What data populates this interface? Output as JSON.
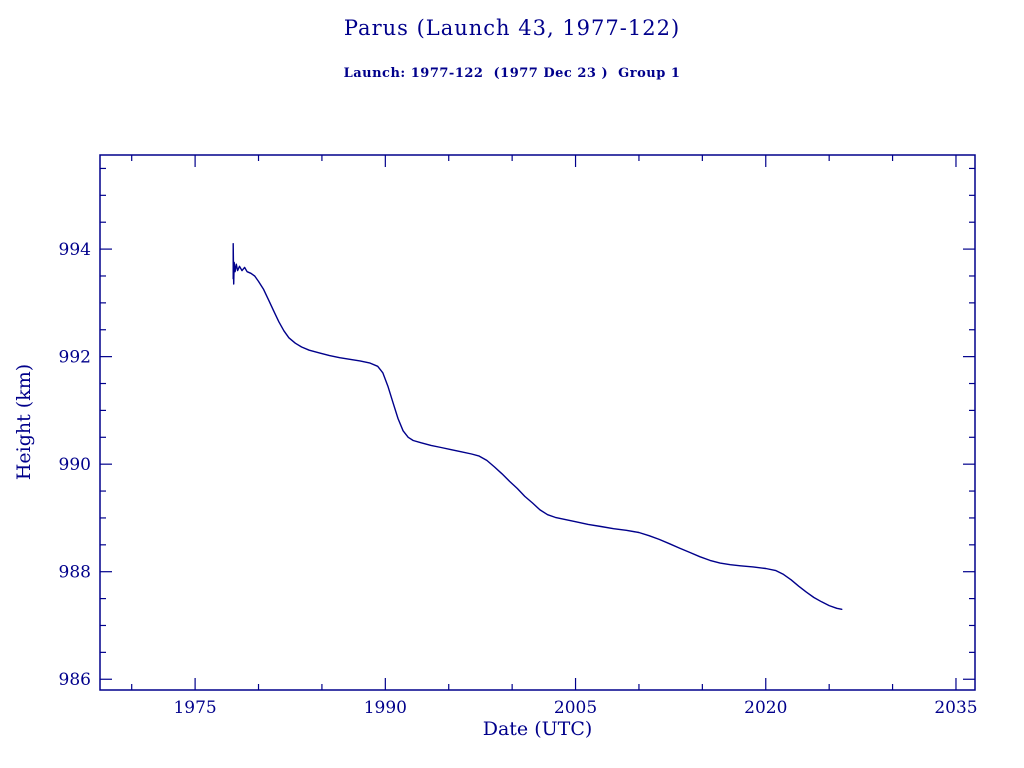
{
  "title": "Parus (Launch 43, 1977-122)",
  "subtitle": "Launch: 1977-122  (1977 Dec 23 )  Group 1",
  "accent_color": "#00008B",
  "background_color": "#ffffff",
  "chart_data": {
    "type": "line",
    "title": "Parus (Launch 43, 1977-122)",
    "subtitle": "Launch: 1977-122  (1977 Dec 23 )  Group 1",
    "xlabel": "Date (UTC)",
    "ylabel": "Height (km)",
    "xlim": [
      1967.5,
      2036.5
    ],
    "ylim": [
      985.8,
      995.75
    ],
    "x_ticks": [
      1975,
      1990,
      2005,
      2020,
      2035
    ],
    "x_minor_step": 5,
    "y_ticks": [
      986,
      988,
      990,
      992,
      994
    ],
    "y_minor_step": 0.5,
    "grid": false,
    "legend": "none",
    "color": "#00008B",
    "series": [
      {
        "name": "orbital height",
        "color": "#00008B",
        "points": [
          [
            1978.0,
            993.45
          ],
          [
            1978.0,
            994.1
          ],
          [
            1978.04,
            993.35
          ],
          [
            1978.08,
            993.75
          ],
          [
            1978.15,
            993.58
          ],
          [
            1978.25,
            993.72
          ],
          [
            1978.35,
            993.6
          ],
          [
            1978.5,
            993.68
          ],
          [
            1978.7,
            993.6
          ],
          [
            1978.9,
            993.66
          ],
          [
            1979.1,
            993.58
          ],
          [
            1979.4,
            993.55
          ],
          [
            1979.7,
            993.5
          ],
          [
            1980.0,
            993.4
          ],
          [
            1980.4,
            993.25
          ],
          [
            1980.8,
            993.05
          ],
          [
            1981.2,
            992.85
          ],
          [
            1981.6,
            992.65
          ],
          [
            1982.0,
            992.48
          ],
          [
            1982.4,
            992.35
          ],
          [
            1982.9,
            992.25
          ],
          [
            1983.4,
            992.18
          ],
          [
            1984.0,
            992.12
          ],
          [
            1984.8,
            992.07
          ],
          [
            1985.6,
            992.02
          ],
          [
            1986.4,
            991.98
          ],
          [
            1987.2,
            991.95
          ],
          [
            1988.0,
            991.92
          ],
          [
            1988.8,
            991.88
          ],
          [
            1989.4,
            991.82
          ],
          [
            1989.8,
            991.7
          ],
          [
            1990.2,
            991.45
          ],
          [
            1990.6,
            991.15
          ],
          [
            1991.0,
            990.85
          ],
          [
            1991.4,
            990.62
          ],
          [
            1991.8,
            990.5
          ],
          [
            1992.2,
            990.44
          ],
          [
            1992.8,
            990.4
          ],
          [
            1993.6,
            990.35
          ],
          [
            1994.4,
            990.31
          ],
          [
            1995.2,
            990.27
          ],
          [
            1996.0,
            990.23
          ],
          [
            1996.8,
            990.19
          ],
          [
            1997.4,
            990.15
          ],
          [
            1998.0,
            990.07
          ],
          [
            1998.6,
            989.95
          ],
          [
            1999.2,
            989.82
          ],
          [
            1999.8,
            989.68
          ],
          [
            2000.4,
            989.55
          ],
          [
            2001.0,
            989.4
          ],
          [
            2001.6,
            989.28
          ],
          [
            2002.2,
            989.15
          ],
          [
            2002.8,
            989.06
          ],
          [
            2003.4,
            989.01
          ],
          [
            2004.2,
            988.97
          ],
          [
            2005.0,
            988.93
          ],
          [
            2006.0,
            988.88
          ],
          [
            2007.0,
            988.84
          ],
          [
            2008.0,
            988.8
          ],
          [
            2009.0,
            988.77
          ],
          [
            2010.0,
            988.73
          ],
          [
            2010.8,
            988.67
          ],
          [
            2011.6,
            988.6
          ],
          [
            2012.4,
            988.52
          ],
          [
            2013.2,
            988.44
          ],
          [
            2014.0,
            988.36
          ],
          [
            2014.8,
            988.28
          ],
          [
            2015.6,
            988.21
          ],
          [
            2016.4,
            988.16
          ],
          [
            2017.2,
            988.13
          ],
          [
            2018.0,
            988.11
          ],
          [
            2019.0,
            988.09
          ],
          [
            2020.0,
            988.06
          ],
          [
            2020.8,
            988.02
          ],
          [
            2021.4,
            987.95
          ],
          [
            2022.0,
            987.85
          ],
          [
            2022.6,
            987.73
          ],
          [
            2023.2,
            987.62
          ],
          [
            2023.8,
            987.52
          ],
          [
            2024.4,
            987.44
          ],
          [
            2025.0,
            987.37
          ],
          [
            2025.6,
            987.32
          ],
          [
            2026.0,
            987.3
          ]
        ]
      }
    ]
  }
}
